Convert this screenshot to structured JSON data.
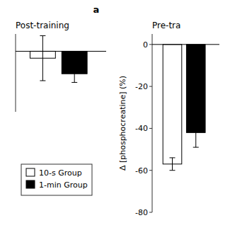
{
  "title": "a",
  "chart_data": [
    {
      "type": "bar",
      "title": "Post-training",
      "series": [
        {
          "name": "10-s Group",
          "color": "white",
          "values": [
            -4
          ],
          "errors": [
            13
          ]
        },
        {
          "name": "1-min Group",
          "color": "black",
          "values": [
            -13
          ],
          "errors": [
            5
          ]
        }
      ],
      "ylim": [
        -35,
        10
      ],
      "tick_labels": false,
      "grid": false
    },
    {
      "type": "bar",
      "title": "Pre-tra",
      "y_label": "Δ [phosphocreatine] (%)",
      "series": [
        {
          "name": "10-s Group",
          "color": "white",
          "values": [
            -57
          ],
          "errors": [
            3
          ]
        },
        {
          "name": "1-min Group",
          "color": "black",
          "values": [
            -42
          ],
          "errors": [
            7
          ]
        }
      ],
      "ylim": [
        -80,
        5
      ],
      "yticks": [
        0,
        -20,
        -40,
        -60,
        -80
      ],
      "grid": false
    }
  ]
}
